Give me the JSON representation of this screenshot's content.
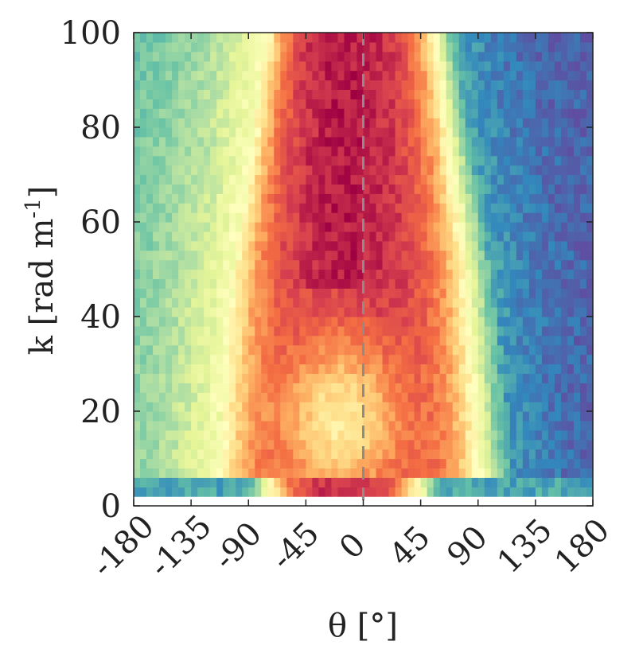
{
  "chart_data": {
    "type": "heatmap",
    "title": "",
    "xlabel": "θ [°]",
    "ylabel": "k [rad m⁻¹]",
    "ylabel_parts": [
      "k [rad m",
      "-1",
      "]"
    ],
    "xlim": [
      -180,
      180
    ],
    "ylim": [
      0,
      100
    ],
    "x_ticks": [
      -180,
      -135,
      -90,
      -45,
      0,
      45,
      90,
      135,
      180
    ],
    "x_tick_labels": [
      "-180",
      "-135",
      "-90",
      "-45",
      "0",
      "45",
      "90",
      "135",
      "180"
    ],
    "y_ticks": [
      0,
      20,
      40,
      60,
      80,
      100
    ],
    "y_tick_labels": [
      "0",
      "20",
      "40",
      "60",
      "80",
      "100"
    ],
    "k_min": 2,
    "bin_width_deg": 5,
    "bin_height_k": 2,
    "reference_line": {
      "x": 0,
      "style": "dashed",
      "color": "#8c8c8c"
    },
    "colormap": "Spectral_r",
    "colormap_stops": [
      "#5e4fa2",
      "#3288bd",
      "#66c2a5",
      "#abdda4",
      "#e6f598",
      "#ffffbf",
      "#fee08b",
      "#fdae61",
      "#f46d43",
      "#d53e4f",
      "#9e0142"
    ],
    "grid": false,
    "legend": "none"
  },
  "colors": {
    "axis": "#222222",
    "reference_line": "#8c8c8c"
  }
}
